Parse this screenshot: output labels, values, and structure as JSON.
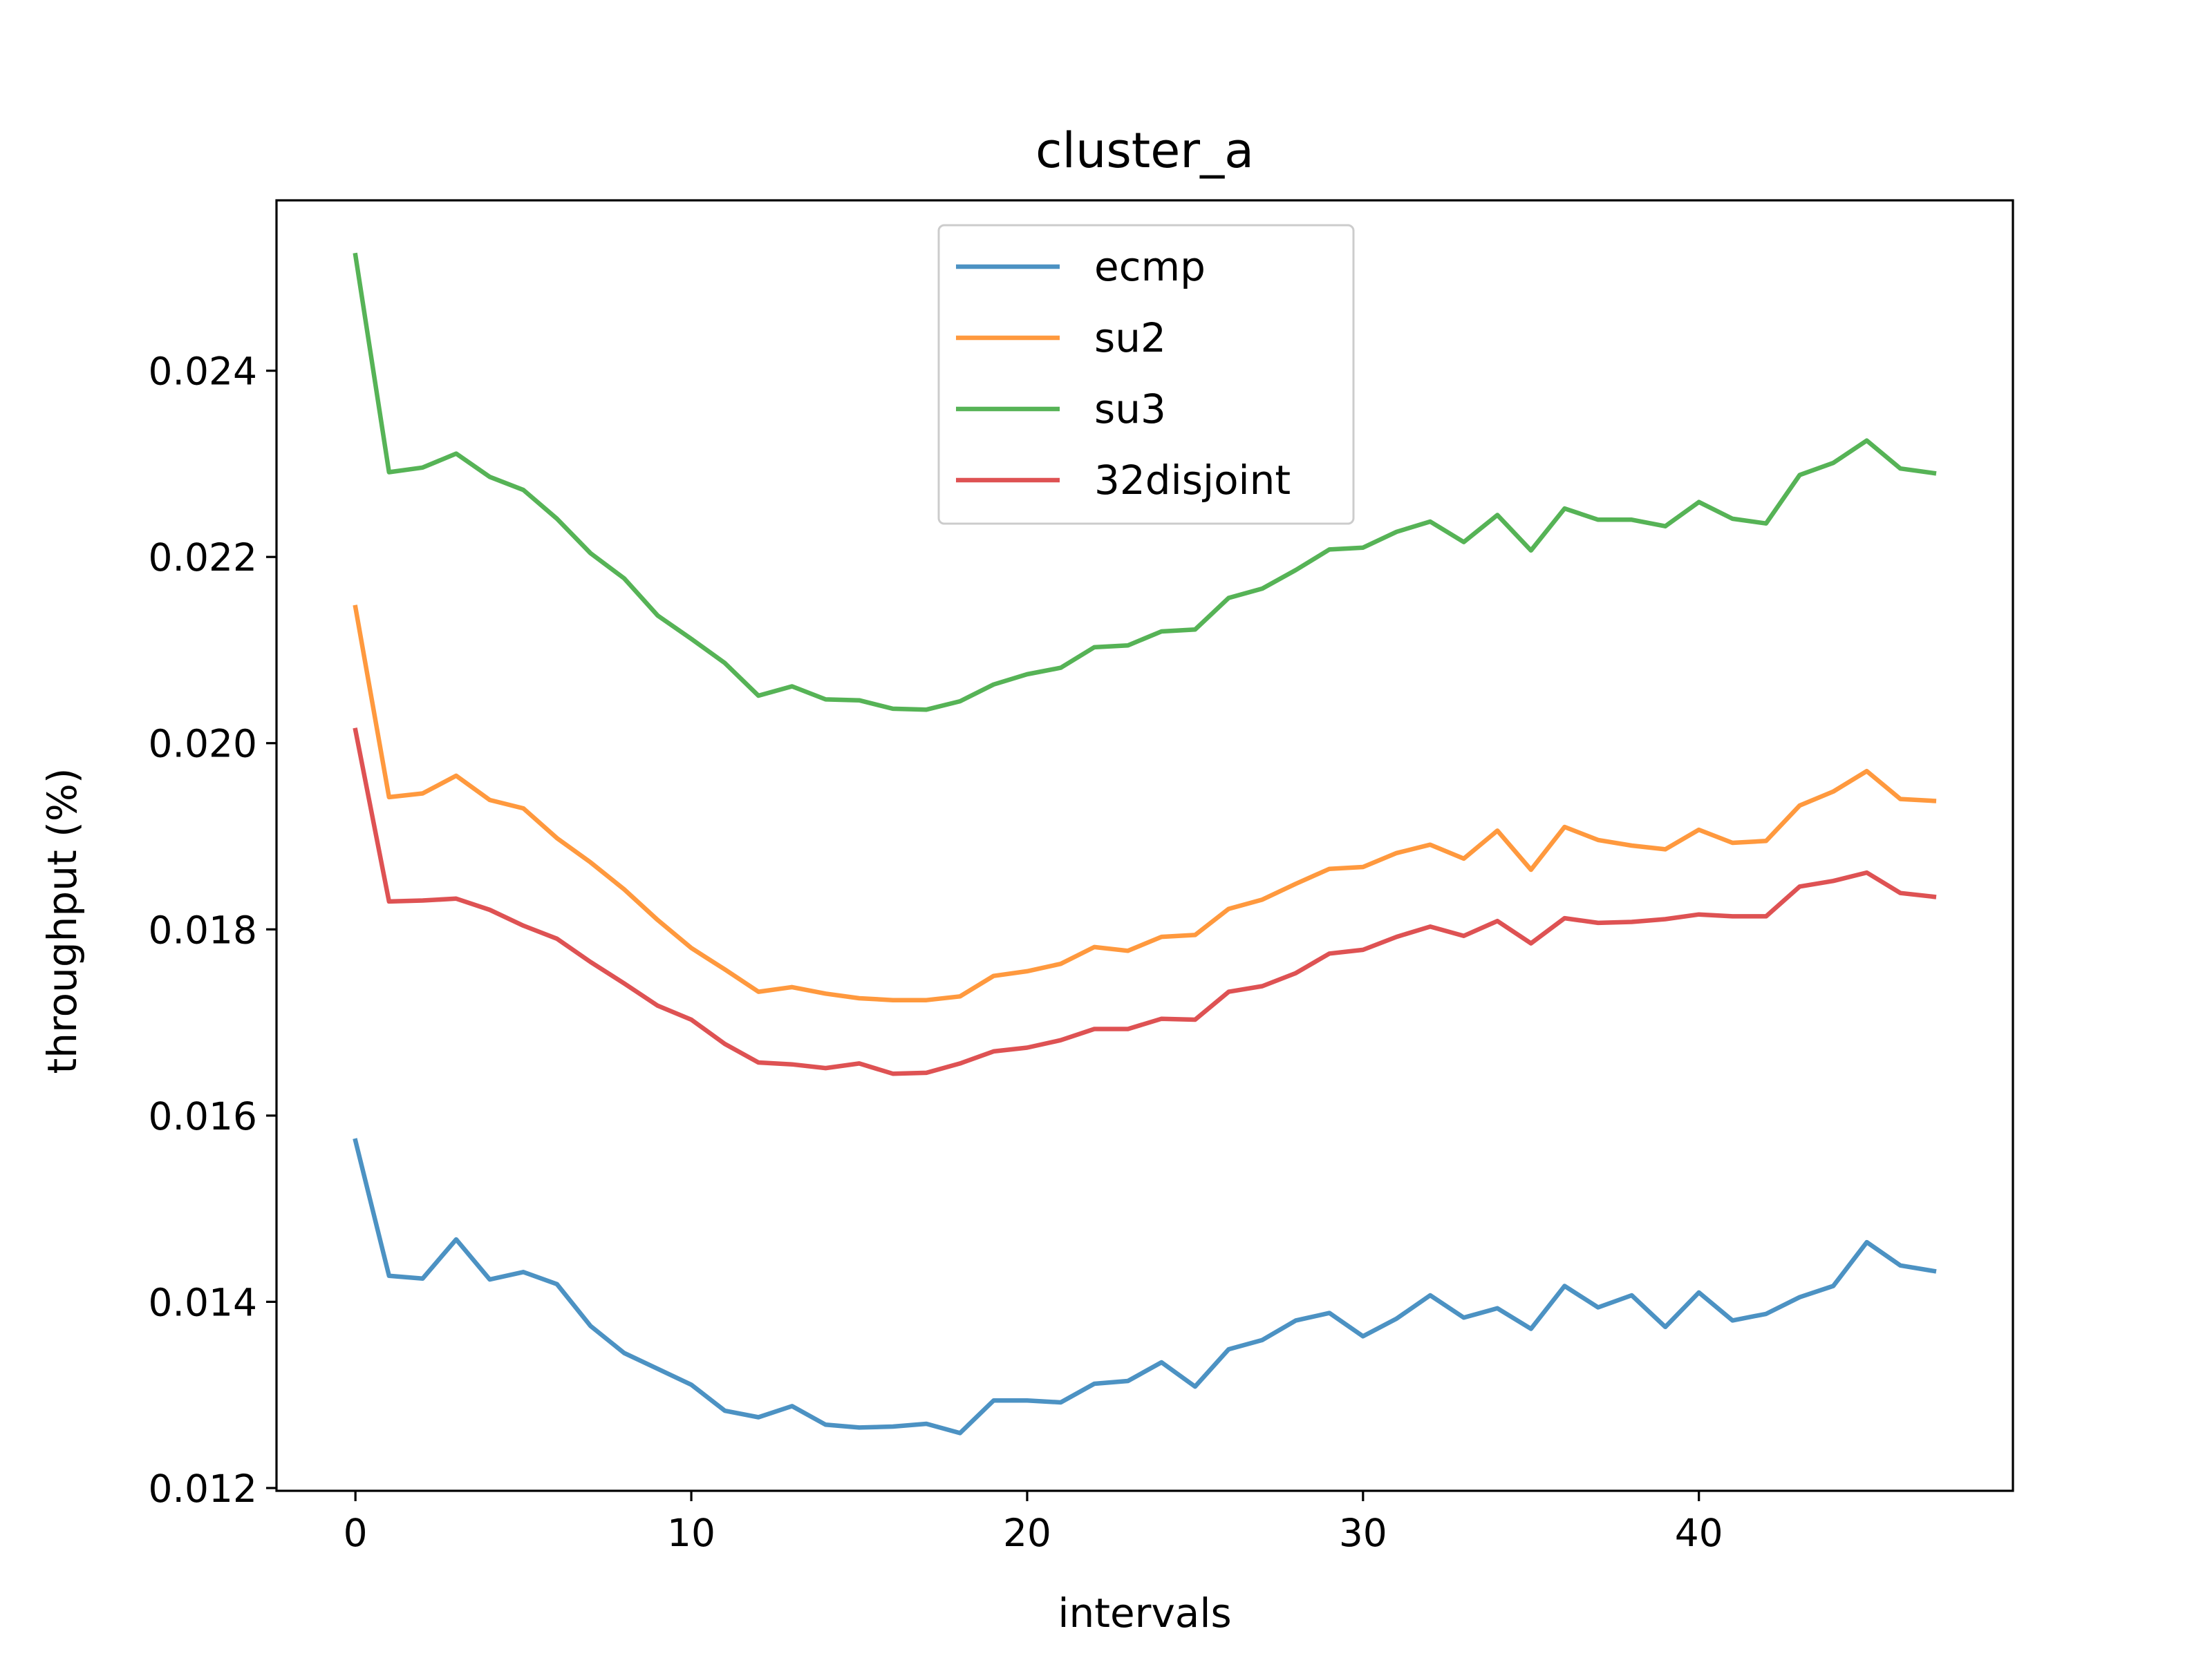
{
  "chart_data": {
    "type": "line",
    "title": "cluster_a",
    "xlabel": "intervals",
    "ylabel": "throughput (%)",
    "xlim": [
      -2.35,
      49.35
    ],
    "ylim": [
      0.01197,
      0.02583
    ],
    "xticks": [
      0,
      10,
      20,
      30,
      40
    ],
    "xtick_labels": [
      "0",
      "10",
      "20",
      "30",
      "40"
    ],
    "yticks": [
      0.012,
      0.014,
      0.016,
      0.018,
      0.02,
      0.022,
      0.024
    ],
    "ytick_labels": [
      "0.012",
      "0.014",
      "0.016",
      "0.018",
      "0.020",
      "0.022",
      "0.024"
    ],
    "grid": false,
    "legend_position": "top-center",
    "x": [
      0,
      1,
      2,
      3,
      4,
      5,
      6,
      7,
      8,
      9,
      10,
      11,
      12,
      13,
      14,
      15,
      16,
      17,
      18,
      19,
      20,
      21,
      22,
      23,
      24,
      25,
      26,
      27,
      28,
      29,
      30,
      31,
      32,
      33,
      34,
      35,
      36,
      37,
      38,
      39,
      40,
      41,
      42,
      43,
      44,
      45,
      46,
      47
    ],
    "series": [
      {
        "name": "ecmp",
        "color": "#1f77b4",
        "values": [
          0.01573,
          0.01428,
          0.01425,
          0.01467,
          0.01424,
          0.01432,
          0.01419,
          0.01374,
          0.01345,
          0.01328,
          0.01311,
          0.01283,
          0.01276,
          0.01288,
          0.01268,
          0.01265,
          0.01266,
          0.01269,
          0.01259,
          0.01294,
          0.01294,
          0.01292,
          0.01312,
          0.01315,
          0.01335,
          0.01309,
          0.01349,
          0.01359,
          0.0138,
          0.01388,
          0.01363,
          0.01382,
          0.01407,
          0.01383,
          0.01393,
          0.01371,
          0.01417,
          0.01394,
          0.01407,
          0.01373,
          0.0141,
          0.0138,
          0.01387,
          0.01405,
          0.01417,
          0.01464,
          0.01439,
          0.01433
        ]
      },
      {
        "name": "su2",
        "color": "#ff7f0e",
        "values": [
          0.02146,
          0.01942,
          0.01946,
          0.01965,
          0.01939,
          0.0193,
          0.01898,
          0.01872,
          0.01843,
          0.0181,
          0.0178,
          0.01757,
          0.01733,
          0.01738,
          0.01731,
          0.01726,
          0.01724,
          0.01724,
          0.01728,
          0.0175,
          0.01755,
          0.01763,
          0.01781,
          0.01777,
          0.01792,
          0.01794,
          0.01822,
          0.01832,
          0.01849,
          0.01865,
          0.01867,
          0.01882,
          0.01891,
          0.01876,
          0.01906,
          0.01864,
          0.0191,
          0.01896,
          0.0189,
          0.01886,
          0.01907,
          0.01893,
          0.01895,
          0.01933,
          0.01948,
          0.0197,
          0.0194,
          0.01938
        ]
      },
      {
        "name": "su3",
        "color": "#2ca02c",
        "values": [
          0.02524,
          0.02291,
          0.02296,
          0.02311,
          0.02286,
          0.02272,
          0.02241,
          0.02204,
          0.02177,
          0.02137,
          0.02112,
          0.02086,
          0.02051,
          0.02061,
          0.02047,
          0.02046,
          0.02037,
          0.02036,
          0.02045,
          0.02063,
          0.02074,
          0.02081,
          0.02103,
          0.02105,
          0.0212,
          0.02122,
          0.02156,
          0.02166,
          0.02186,
          0.02208,
          0.0221,
          0.02227,
          0.02238,
          0.02216,
          0.02245,
          0.02207,
          0.02252,
          0.0224,
          0.0224,
          0.02233,
          0.02259,
          0.02241,
          0.02236,
          0.02288,
          0.02301,
          0.02325,
          0.02295,
          0.0229
        ]
      },
      {
        "name": "32disjoint",
        "color": "#d62728",
        "values": [
          0.02014,
          0.0183,
          0.01831,
          0.01833,
          0.01821,
          0.01804,
          0.0179,
          0.01765,
          0.01742,
          0.01718,
          0.01703,
          0.01677,
          0.01657,
          0.01655,
          0.01651,
          0.01656,
          0.01645,
          0.01646,
          0.01656,
          0.01669,
          0.01673,
          0.01681,
          0.01693,
          0.01693,
          0.01704,
          0.01703,
          0.01733,
          0.01739,
          0.01753,
          0.01774,
          0.01778,
          0.01792,
          0.01803,
          0.01793,
          0.01809,
          0.01785,
          0.01812,
          0.01807,
          0.01808,
          0.01811,
          0.01816,
          0.01814,
          0.01814,
          0.01846,
          0.01852,
          0.01861,
          0.01839,
          0.01835
        ]
      }
    ]
  }
}
